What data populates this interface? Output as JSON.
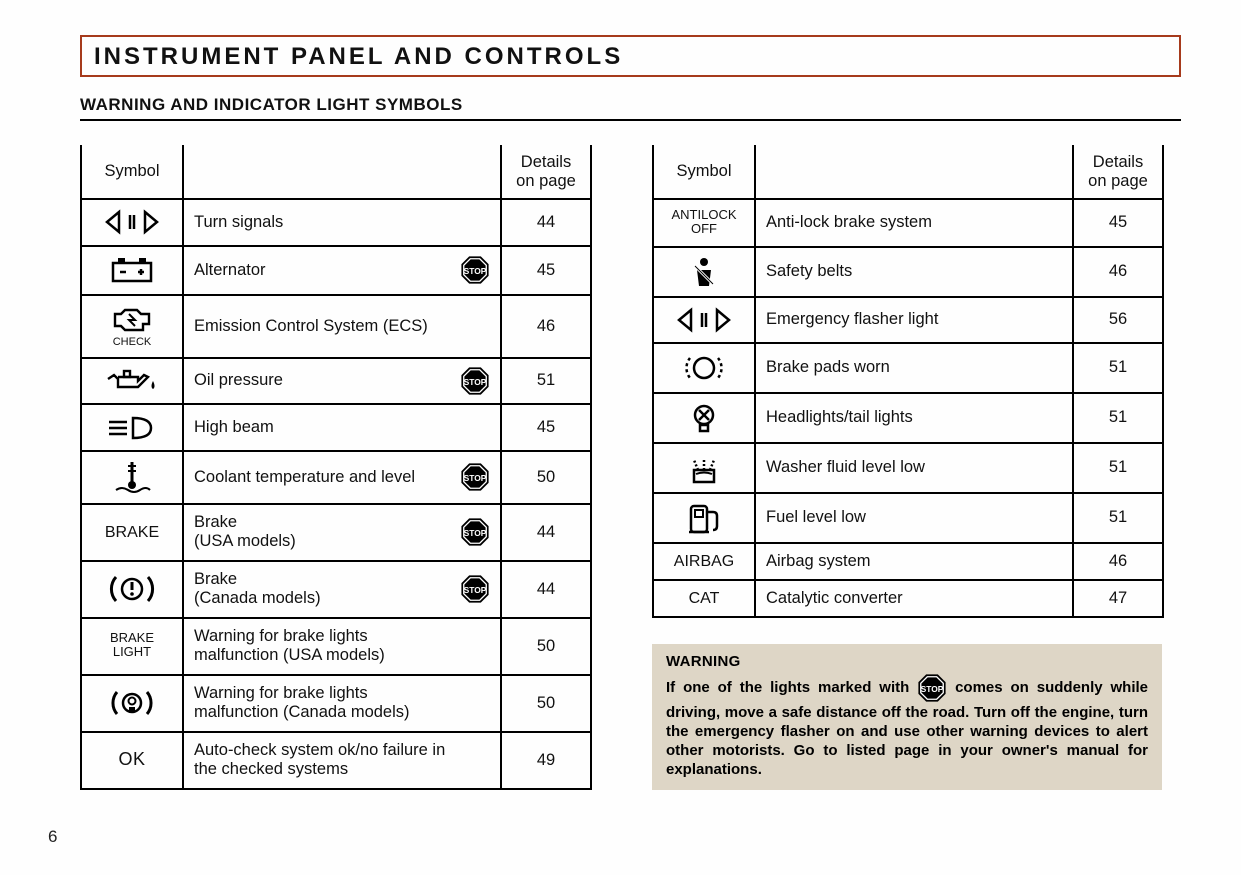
{
  "page": {
    "title": "INSTRUMENT PANEL AND CONTROLS",
    "subtitle": "WARNING AND INDICATOR LIGHT SYMBOLS",
    "page_number": "6",
    "colors": {
      "title_border": "#a63a1c",
      "rule": "#000000",
      "table_border": "#000000",
      "warning_bg": "#ded6c6",
      "text": "#111111",
      "stop_fill": "#000000",
      "stop_text": "#ffffff"
    },
    "column_headers": {
      "symbol": "Symbol",
      "details": "Details on page"
    },
    "left_table": [
      {
        "symbol_type": "svg",
        "icon": "turn-signals",
        "desc": "Turn signals",
        "stop": false,
        "page": "44"
      },
      {
        "symbol_type": "svg",
        "icon": "battery",
        "desc": "Alternator",
        "stop": true,
        "page": "45"
      },
      {
        "symbol_type": "svg",
        "icon": "engine-check",
        "sub": "CHECK",
        "desc": "Emission Control System (ECS)",
        "stop": false,
        "page": "46"
      },
      {
        "symbol_type": "svg",
        "icon": "oil-can",
        "desc": "Oil pressure",
        "stop": true,
        "page": "51"
      },
      {
        "symbol_type": "svg",
        "icon": "high-beam",
        "desc": "High beam",
        "stop": false,
        "page": "45"
      },
      {
        "symbol_type": "svg",
        "icon": "thermometer",
        "desc": "Coolant temperature and level",
        "stop": true,
        "page": "50"
      },
      {
        "symbol_type": "text",
        "text": "BRAKE",
        "desc": "Brake\n(USA models)",
        "stop": true,
        "page": "44"
      },
      {
        "symbol_type": "svg",
        "icon": "brake-warn",
        "desc": "Brake\n(Canada models)",
        "stop": true,
        "page": "44"
      },
      {
        "symbol_type": "text",
        "text": "BRAKE\nLIGHT",
        "text_class": "small",
        "desc": "Warning for brake lights malfunction (USA models)",
        "stop": false,
        "page": "50"
      },
      {
        "symbol_type": "svg",
        "icon": "bulb-warn",
        "desc": "Warning for brake lights malfunction (Canada models)",
        "stop": false,
        "page": "50"
      },
      {
        "symbol_type": "text",
        "text": "OK",
        "text_class": "big",
        "desc": "Auto-check system ok/no failure in the checked systems",
        "stop": false,
        "page": "49"
      }
    ],
    "right_table": [
      {
        "symbol_type": "text",
        "text": "ANTILOCK\nOFF",
        "text_class": "small",
        "desc": "Anti-lock brake system",
        "stop": false,
        "page": "45"
      },
      {
        "symbol_type": "svg",
        "icon": "seatbelt",
        "desc": "Safety belts",
        "stop": false,
        "page": "46"
      },
      {
        "symbol_type": "svg",
        "icon": "turn-signals",
        "desc": "Emergency flasher light",
        "stop": false,
        "page": "56"
      },
      {
        "symbol_type": "svg",
        "icon": "brake-pads",
        "desc": "Brake pads worn",
        "stop": false,
        "page": "51"
      },
      {
        "symbol_type": "svg",
        "icon": "bulb-x",
        "desc": "Headlights/tail lights",
        "stop": false,
        "page": "51"
      },
      {
        "symbol_type": "svg",
        "icon": "washer",
        "desc": "Washer fluid level low",
        "stop": false,
        "page": "51"
      },
      {
        "symbol_type": "svg",
        "icon": "fuel-pump",
        "desc": "Fuel level low",
        "stop": false,
        "page": "51"
      },
      {
        "symbol_type": "text",
        "text": "AIRBAG",
        "desc": "Airbag system",
        "stop": false,
        "page": "46"
      },
      {
        "symbol_type": "text",
        "text": "CAT",
        "desc": "Catalytic converter",
        "stop": false,
        "page": "47"
      }
    ],
    "warning": {
      "heading": "WARNING",
      "body_pre": "If one of the lights marked with ",
      "body_post": " comes on suddenly while driving, move a safe distance off the road. Turn off the engine, turn the emergency flasher on and use other warning devices to alert other motorists. Go to listed page in your owner's manual for explanations."
    }
  }
}
